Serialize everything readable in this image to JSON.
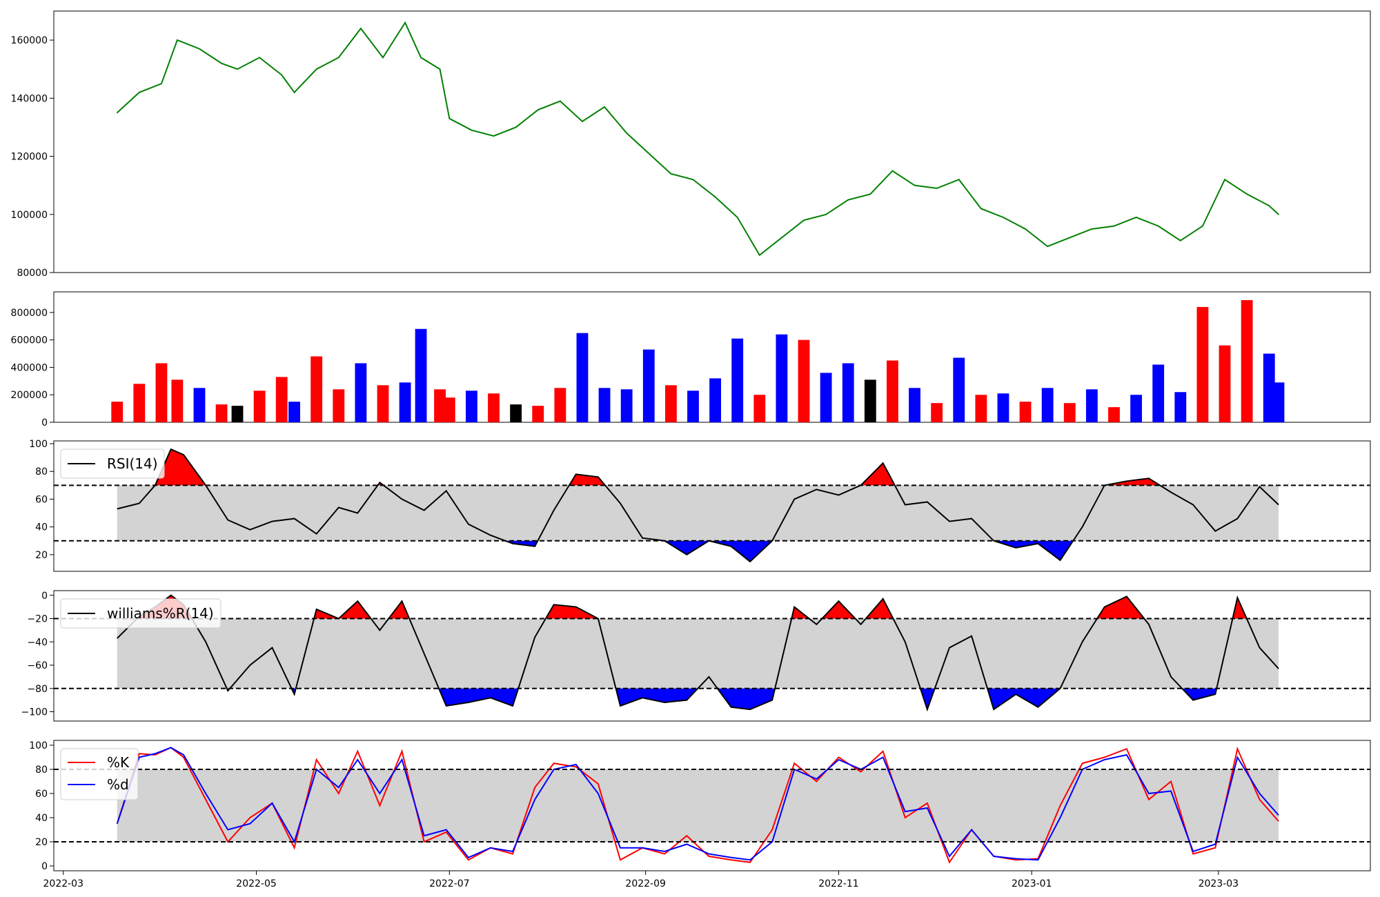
{
  "chart_data": [
    {
      "panel": "price",
      "type": "line",
      "title": "",
      "xlabel": "",
      "ylabel": "",
      "ylim": [
        80000,
        170000
      ],
      "yticks": [
        80000,
        100000,
        120000,
        140000,
        160000
      ],
      "ytick_labels": [
        "80000",
        "100000",
        "120000",
        "140000",
        "160000"
      ],
      "color": "#008000",
      "x": [
        "2022-03-18",
        "2022-03-25",
        "2022-04-01",
        "2022-04-06",
        "2022-04-13",
        "2022-04-20",
        "2022-04-25",
        "2022-05-02",
        "2022-05-09",
        "2022-05-13",
        "2022-05-20",
        "2022-05-27",
        "2022-06-03",
        "2022-06-10",
        "2022-06-17",
        "2022-06-22",
        "2022-06-28",
        "2022-07-01",
        "2022-07-08",
        "2022-07-15",
        "2022-07-22",
        "2022-07-29",
        "2022-08-05",
        "2022-08-12",
        "2022-08-19",
        "2022-08-26",
        "2022-09-02",
        "2022-09-09",
        "2022-09-16",
        "2022-09-23",
        "2022-09-30",
        "2022-10-07",
        "2022-10-14",
        "2022-10-21",
        "2022-10-28",
        "2022-11-04",
        "2022-11-11",
        "2022-11-18",
        "2022-11-25",
        "2022-12-02",
        "2022-12-09",
        "2022-12-16",
        "2022-12-23",
        "2022-12-30",
        "2023-01-06",
        "2023-01-13",
        "2023-01-20",
        "2023-01-27",
        "2023-02-03",
        "2023-02-10",
        "2023-02-17",
        "2023-02-24",
        "2023-03-03",
        "2023-03-10",
        "2023-03-17",
        "2023-03-20"
      ],
      "y": [
        135000,
        142000,
        145000,
        160000,
        157000,
        152000,
        150000,
        154000,
        148000,
        142000,
        150000,
        154000,
        164000,
        154000,
        166000,
        154000,
        150000,
        133000,
        129000,
        127000,
        130000,
        136000,
        139000,
        132000,
        137000,
        128000,
        121000,
        114000,
        112000,
        106000,
        99000,
        86000,
        92000,
        98000,
        100000,
        105000,
        107000,
        115000,
        110000,
        109000,
        112000,
        102000,
        99000,
        95000,
        89000,
        92000,
        95000,
        96000,
        99000,
        96000,
        91000,
        96000,
        112000,
        107000,
        103000,
        100000
      ]
    },
    {
      "panel": "volume",
      "type": "bar",
      "title": "",
      "xlabel": "",
      "ylabel": "",
      "ylim": [
        0,
        950000
      ],
      "yticks": [
        0,
        200000,
        400000,
        600000,
        800000
      ],
      "ytick_labels": [
        "0",
        "200000",
        "400000",
        "600000",
        "800000"
      ],
      "colors": {
        "up": "#ff0000",
        "down": "#0000ff",
        "flat": "#000000"
      },
      "x": [
        "2022-03-18",
        "2022-03-25",
        "2022-04-01",
        "2022-04-06",
        "2022-04-13",
        "2022-04-20",
        "2022-04-25",
        "2022-05-02",
        "2022-05-09",
        "2022-05-13",
        "2022-05-20",
        "2022-05-27",
        "2022-06-03",
        "2022-06-10",
        "2022-06-17",
        "2022-06-22",
        "2022-06-28",
        "2022-07-01",
        "2022-07-08",
        "2022-07-15",
        "2022-07-22",
        "2022-07-29",
        "2022-08-05",
        "2022-08-12",
        "2022-08-19",
        "2022-08-26",
        "2022-09-02",
        "2022-09-09",
        "2022-09-16",
        "2022-09-23",
        "2022-09-30",
        "2022-10-07",
        "2022-10-14",
        "2022-10-21",
        "2022-10-28",
        "2022-11-04",
        "2022-11-11",
        "2022-11-18",
        "2022-11-25",
        "2022-12-02",
        "2022-12-09",
        "2022-12-16",
        "2022-12-23",
        "2022-12-30",
        "2023-01-06",
        "2023-01-13",
        "2023-01-20",
        "2023-01-27",
        "2023-02-03",
        "2023-02-10",
        "2023-02-17",
        "2023-02-24",
        "2023-03-03",
        "2023-03-10",
        "2023-03-17",
        "2023-03-20"
      ],
      "values": [
        150000,
        280000,
        430000,
        310000,
        250000,
        130000,
        120000,
        230000,
        330000,
        150000,
        480000,
        240000,
        430000,
        270000,
        290000,
        680000,
        240000,
        180000,
        230000,
        210000,
        130000,
        120000,
        250000,
        650000,
        250000,
        240000,
        530000,
        270000,
        230000,
        320000,
        610000,
        200000,
        640000,
        600000,
        360000,
        430000,
        310000,
        450000,
        250000,
        140000,
        470000,
        200000,
        210000,
        150000,
        250000,
        140000,
        240000,
        110000,
        200000,
        420000,
        220000,
        840000,
        560000,
        890000,
        500000,
        290000
      ],
      "direction": [
        "up",
        "up",
        "up",
        "up",
        "down",
        "up",
        "flat",
        "up",
        "up",
        "down",
        "up",
        "up",
        "down",
        "up",
        "down",
        "down",
        "up",
        "up",
        "down",
        "up",
        "flat",
        "up",
        "up",
        "down",
        "down",
        "down",
        "down",
        "up",
        "down",
        "down",
        "down",
        "up",
        "down",
        "up",
        "down",
        "down",
        "flat",
        "up",
        "down",
        "up",
        "down",
        "up",
        "down",
        "up",
        "down",
        "up",
        "down",
        "up",
        "down",
        "down",
        "down",
        "up",
        "up",
        "up",
        "down",
        "down"
      ]
    },
    {
      "panel": "rsi",
      "type": "line",
      "title": "",
      "xlabel": "",
      "ylabel": "",
      "ylim": [
        8,
        102
      ],
      "yticks": [
        20,
        40,
        60,
        80,
        100
      ],
      "ytick_labels": [
        "20",
        "40",
        "60",
        "80",
        "100"
      ],
      "legend": "RSI(14)",
      "legend_position": "top-left",
      "thresholds": [
        30,
        70
      ],
      "band_color": "#d3d3d3",
      "overbought_fill": "#ff0000",
      "oversold_fill": "#0000ff",
      "line_color": "#000000",
      "x": [
        "2022-03-18",
        "2022-03-25",
        "2022-03-30",
        "2022-04-04",
        "2022-04-08",
        "2022-04-15",
        "2022-04-22",
        "2022-04-29",
        "2022-05-06",
        "2022-05-13",
        "2022-05-20",
        "2022-05-27",
        "2022-06-02",
        "2022-06-09",
        "2022-06-16",
        "2022-06-23",
        "2022-06-30",
        "2022-07-07",
        "2022-07-14",
        "2022-07-21",
        "2022-07-28",
        "2022-08-03",
        "2022-08-10",
        "2022-08-17",
        "2022-08-24",
        "2022-08-31",
        "2022-09-07",
        "2022-09-14",
        "2022-09-21",
        "2022-09-28",
        "2022-10-04",
        "2022-10-11",
        "2022-10-18",
        "2022-10-25",
        "2022-11-01",
        "2022-11-08",
        "2022-11-15",
        "2022-11-22",
        "2022-11-29",
        "2022-12-06",
        "2022-12-13",
        "2022-12-20",
        "2022-12-27",
        "2023-01-03",
        "2023-01-10",
        "2023-01-17",
        "2023-01-24",
        "2023-01-31",
        "2023-02-07",
        "2023-02-14",
        "2023-02-21",
        "2023-02-28",
        "2023-03-07",
        "2023-03-14",
        "2023-03-20"
      ],
      "y": [
        53,
        57,
        70,
        96,
        92,
        70,
        45,
        38,
        44,
        46,
        35,
        54,
        50,
        72,
        60,
        52,
        66,
        42,
        34,
        28,
        26,
        52,
        78,
        76,
        57,
        32,
        30,
        20,
        30,
        26,
        15,
        30,
        60,
        67,
        63,
        70,
        86,
        56,
        58,
        44,
        46,
        30,
        25,
        28,
        16,
        40,
        70,
        73,
        75,
        65,
        56,
        37,
        46,
        69,
        56
      ]
    },
    {
      "panel": "williams",
      "type": "line",
      "title": "",
      "xlabel": "",
      "ylabel": "",
      "ylim": [
        -108,
        4
      ],
      "yticks": [
        -100,
        -80,
        -60,
        -40,
        -20,
        0
      ],
      "ytick_labels": [
        "−100",
        "−80",
        "−60",
        "−40",
        "−20",
        "0"
      ],
      "legend": "williams%R(14)",
      "legend_position": "top-left",
      "thresholds": [
        -80,
        -20
      ],
      "band_color": "#d3d3d3",
      "overbought_fill": "#ff0000",
      "oversold_fill": "#0000ff",
      "line_color": "#000000",
      "x": [
        "2022-03-18",
        "2022-03-25",
        "2022-03-30",
        "2022-04-04",
        "2022-04-08",
        "2022-04-15",
        "2022-04-22",
        "2022-04-29",
        "2022-05-06",
        "2022-05-13",
        "2022-05-20",
        "2022-05-27",
        "2022-06-02",
        "2022-06-09",
        "2022-06-16",
        "2022-06-23",
        "2022-06-30",
        "2022-07-07",
        "2022-07-14",
        "2022-07-21",
        "2022-07-28",
        "2022-08-03",
        "2022-08-10",
        "2022-08-17",
        "2022-08-24",
        "2022-08-31",
        "2022-09-07",
        "2022-09-14",
        "2022-09-21",
        "2022-09-28",
        "2022-10-04",
        "2022-10-11",
        "2022-10-18",
        "2022-10-25",
        "2022-11-01",
        "2022-11-08",
        "2022-11-15",
        "2022-11-22",
        "2022-11-29",
        "2022-12-06",
        "2022-12-13",
        "2022-12-20",
        "2022-12-27",
        "2023-01-03",
        "2023-01-10",
        "2023-01-17",
        "2023-01-24",
        "2023-01-31",
        "2023-02-07",
        "2023-02-14",
        "2023-02-21",
        "2023-02-28",
        "2023-03-07",
        "2023-03-14",
        "2023-03-20"
      ],
      "y": [
        -37,
        -18,
        -10,
        0,
        -8,
        -40,
        -82,
        -60,
        -45,
        -85,
        -12,
        -20,
        -5,
        -30,
        -5,
        -50,
        -95,
        -92,
        -88,
        -95,
        -36,
        -8,
        -10,
        -20,
        -95,
        -88,
        -92,
        -90,
        -70,
        -96,
        -98,
        -90,
        -10,
        -25,
        -5,
        -25,
        -3,
        -40,
        -98,
        -45,
        -35,
        -98,
        -85,
        -96,
        -80,
        -40,
        -10,
        -1,
        -25,
        -70,
        -90,
        -85,
        -2,
        -45,
        -63
      ]
    },
    {
      "panel": "stochastic",
      "type": "line",
      "title": "",
      "xlabel": "",
      "ylabel": "",
      "ylim": [
        -4,
        104
      ],
      "yticks": [
        0,
        20,
        40,
        60,
        80,
        100
      ],
      "ytick_labels": [
        "0",
        "20",
        "40",
        "60",
        "80",
        "100"
      ],
      "thresholds": [
        20,
        80
      ],
      "band_color": "#d3d3d3",
      "legend_position": "top-left",
      "x_ticks": [
        "2022-03-01",
        "2022-05-01",
        "2022-07-01",
        "2022-09-01",
        "2022-11-01",
        "2023-01-01",
        "2023-03-01"
      ],
      "x_tick_labels": [
        "2022-03",
        "2022-05",
        "2022-07",
        "2022-09",
        "2022-11",
        "2023-01",
        "2023-03"
      ],
      "x_range": [
        "2022-02-26",
        "2023-04-18"
      ],
      "x": [
        "2022-03-18",
        "2022-03-25",
        "2022-03-30",
        "2022-04-04",
        "2022-04-08",
        "2022-04-15",
        "2022-04-22",
        "2022-04-29",
        "2022-05-06",
        "2022-05-13",
        "2022-05-20",
        "2022-05-27",
        "2022-06-02",
        "2022-06-09",
        "2022-06-16",
        "2022-06-23",
        "2022-06-30",
        "2022-07-07",
        "2022-07-14",
        "2022-07-21",
        "2022-07-28",
        "2022-08-03",
        "2022-08-10",
        "2022-08-17",
        "2022-08-24",
        "2022-08-31",
        "2022-09-07",
        "2022-09-14",
        "2022-09-21",
        "2022-09-28",
        "2022-10-04",
        "2022-10-11",
        "2022-10-18",
        "2022-10-25",
        "2022-11-01",
        "2022-11-08",
        "2022-11-15",
        "2022-11-22",
        "2022-11-29",
        "2022-12-06",
        "2022-12-13",
        "2022-12-20",
        "2022-12-27",
        "2023-01-03",
        "2023-01-10",
        "2023-01-17",
        "2023-01-24",
        "2023-01-31",
        "2023-02-07",
        "2023-02-14",
        "2023-02-21",
        "2023-02-28",
        "2023-03-07",
        "2023-03-14",
        "2023-03-20"
      ],
      "series": [
        {
          "name": "%K",
          "color": "#ff0000",
          "values": [
            35,
            93,
            92,
            98,
            90,
            55,
            20,
            40,
            52,
            15,
            88,
            60,
            95,
            50,
            95,
            20,
            28,
            5,
            15,
            10,
            65,
            85,
            82,
            68,
            5,
            15,
            10,
            25,
            8,
            5,
            3,
            30,
            85,
            70,
            90,
            78,
            95,
            40,
            52,
            3,
            30,
            8,
            5,
            6,
            50,
            85,
            90,
            97,
            55,
            70,
            10,
            15,
            97,
            55,
            37
          ]
        },
        {
          "name": "%d",
          "color": "#0000ff",
          "values": [
            35,
            90,
            93,
            98,
            92,
            60,
            30,
            35,
            52,
            20,
            80,
            65,
            88,
            60,
            88,
            25,
            30,
            7,
            15,
            12,
            55,
            80,
            84,
            60,
            15,
            15,
            12,
            18,
            10,
            7,
            5,
            20,
            80,
            72,
            88,
            80,
            90,
            45,
            48,
            8,
            30,
            8,
            6,
            5,
            40,
            80,
            88,
            92,
            60,
            62,
            12,
            18,
            90,
            60,
            42
          ]
        }
      ]
    }
  ]
}
